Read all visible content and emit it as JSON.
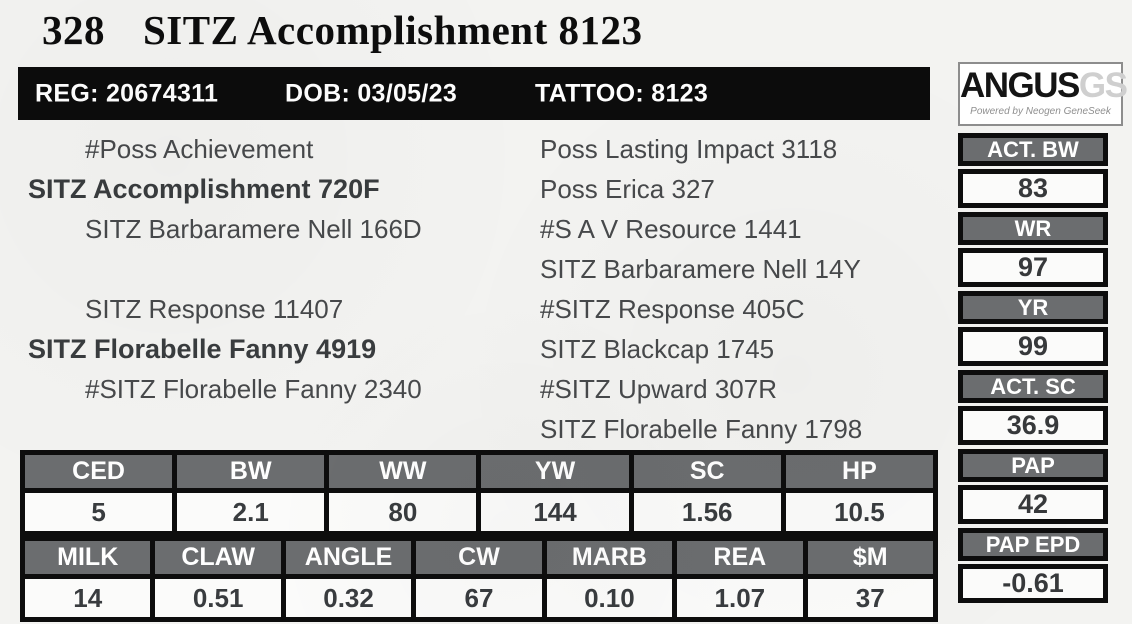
{
  "page": {
    "lot_number": "328",
    "title": "SITZ Accomplishment 8123"
  },
  "info_bar": {
    "reg": "REG: 20674311",
    "dob": "DOB: 03/05/23",
    "tattoo": "TATTOO: 8123"
  },
  "logo": {
    "brand": "ANGUS",
    "brand_suffix": "GS",
    "tagline": "Powered by Neogen GeneSeek"
  },
  "pedigree": {
    "left": [
      "#Poss Achievement",
      "SITZ Accomplishment 720F",
      "SITZ Barbaramere Nell 166D",
      "",
      "SITZ Response 11407",
      "SITZ Florabelle Fanny 4919",
      "#SITZ Florabelle Fanny 2340",
      ""
    ],
    "right": [
      "Poss Lasting Impact 3118",
      "Poss Erica 327",
      "#S A V Resource 1441",
      "SITZ Barbaramere Nell 14Y",
      "#SITZ Response 405C",
      "SITZ Blackcap 1745",
      "#SITZ Upward 307R",
      "SITZ Florabelle Fanny 1798"
    ]
  },
  "stats": [
    {
      "label": "ACT. BW",
      "value": "83"
    },
    {
      "label": "WR",
      "value": "97"
    },
    {
      "label": "YR",
      "value": "99"
    },
    {
      "label": "ACT. SC",
      "value": "36.9"
    },
    {
      "label": "PAP",
      "value": "42"
    },
    {
      "label": "PAP EPD",
      "value": "-0.61"
    }
  ],
  "epd_primary": {
    "headers": [
      "CED",
      "BW",
      "WW",
      "YW",
      "SC",
      "HP"
    ],
    "values": [
      "5",
      "2.1",
      "80",
      "144",
      "1.56",
      "10.5"
    ]
  },
  "epd_secondary": {
    "headers": [
      "MILK",
      "CLAW",
      "ANGLE",
      "CW",
      "MARB",
      "REA",
      "$M"
    ],
    "values": [
      "14",
      "0.51",
      "0.32",
      "67",
      "0.10",
      "1.07",
      "37"
    ]
  },
  "colors": {
    "header_gray": "#6b6d6f",
    "border_black": "#0d0d0d",
    "bar_black": "#0c0c0c"
  }
}
